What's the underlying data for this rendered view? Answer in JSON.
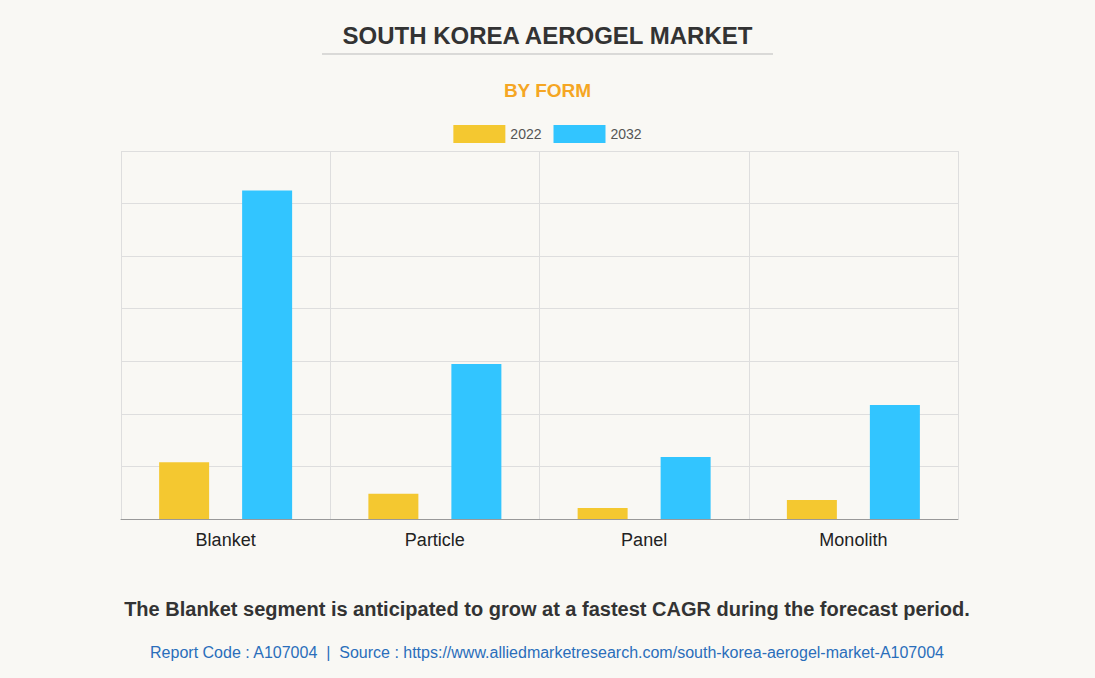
{
  "chart_data": {
    "type": "bar",
    "title": "SOUTH KOREA AEROGEL MARKET",
    "subtitle": "BY FORM",
    "categories": [
      "Blanket",
      "Particle",
      "Panel",
      "Monolith"
    ],
    "series": [
      {
        "name": "2022",
        "color": "#f4c830",
        "values": [
          1.08,
          0.48,
          0.21,
          0.36
        ]
      },
      {
        "name": "2032",
        "color": "#32c5ff",
        "values": [
          6.25,
          2.95,
          1.18,
          2.17
        ]
      }
    ],
    "ylim": [
      0,
      7
    ],
    "yticks": [
      0,
      1,
      2,
      3,
      4,
      5,
      6,
      7
    ],
    "grid": true,
    "legend": "top",
    "tick_labels": "x",
    "annotations": [
      "The Blanket segment is anticipated to grow at a fastest CAGR during the forecast period.",
      "Report Code : A107004  |  Source : https://www.alliedmarketresearch.com/south-korea-aerogel-market-A107004"
    ]
  }
}
